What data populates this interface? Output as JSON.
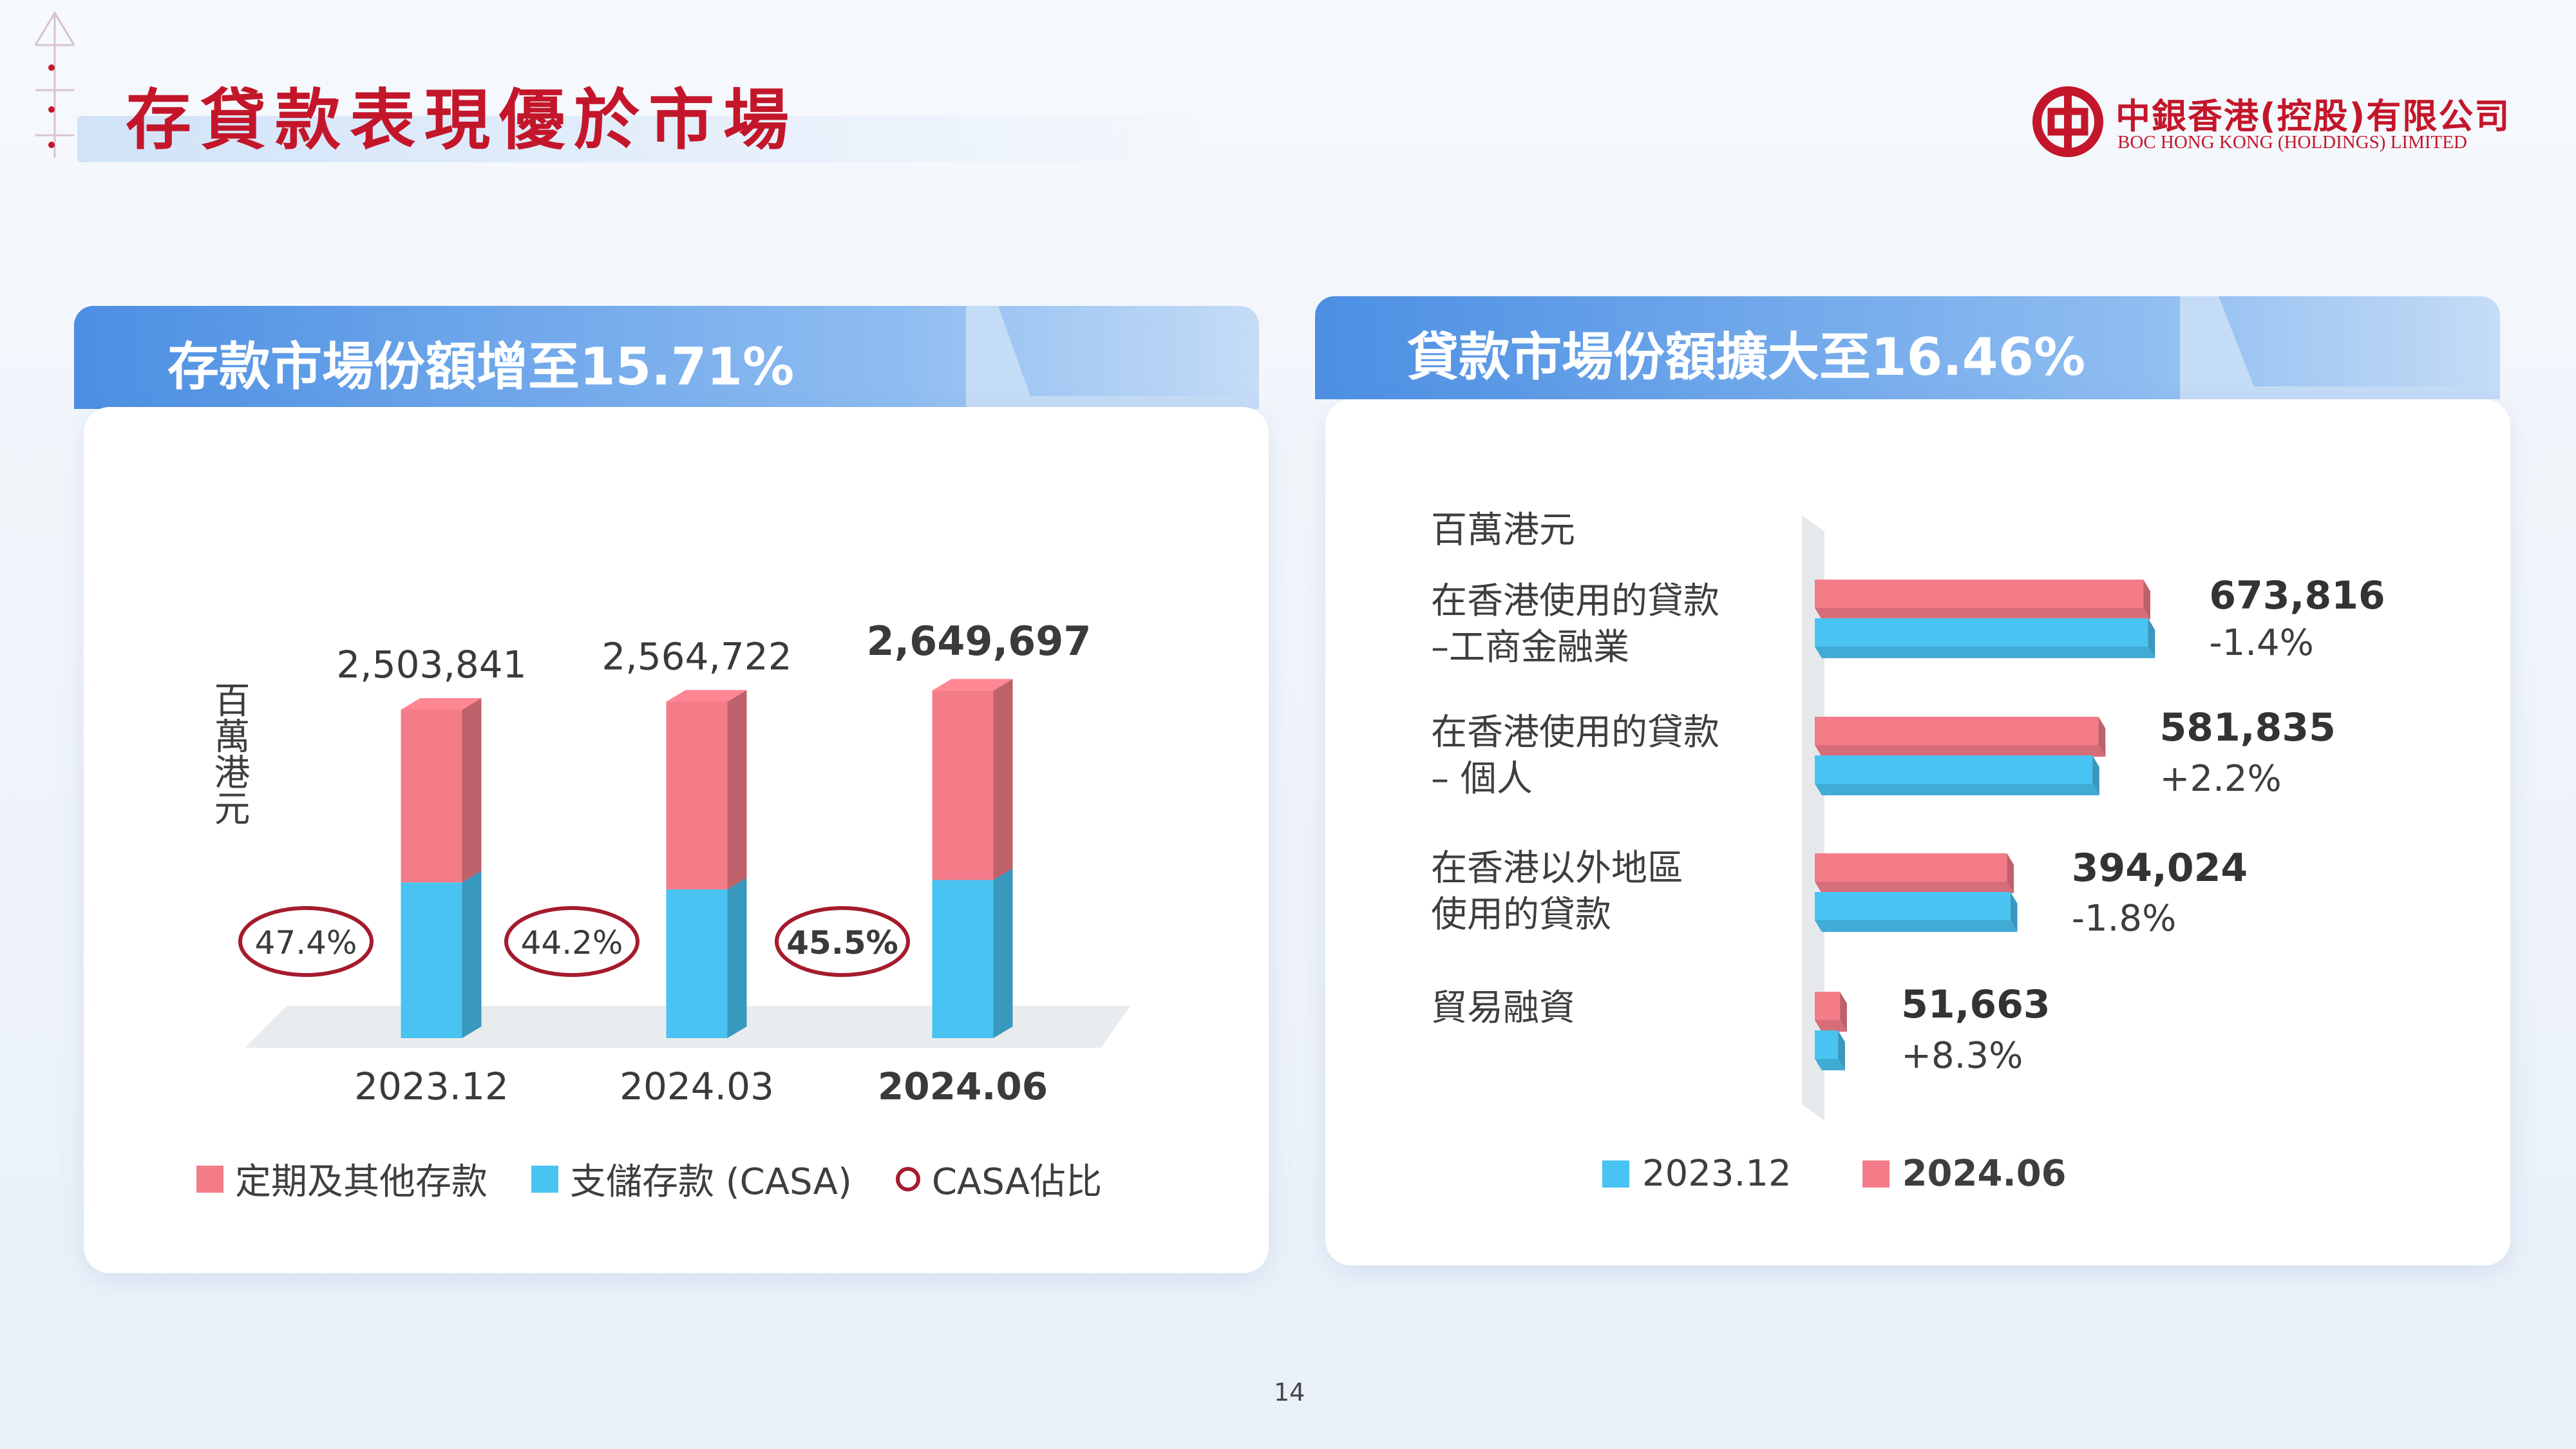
{
  "header": {
    "title": "存貸款表現優於市場",
    "logo_cn": "中銀香港(控股)有限公司",
    "logo_en": "BOC HONG KONG (HOLDINGS) LIMITED"
  },
  "page_number": "14",
  "colors": {
    "red": "#f47c88",
    "blue": "#49c3f2",
    "accent": "#c4162a",
    "circle": "#a51b2d"
  },
  "chart_data": [
    {
      "type": "bar",
      "title": "存款市場份額增至15.71%",
      "ylabel": "百萬港元",
      "categories": [
        "2023.12",
        "2024.03",
        "2024.06"
      ],
      "totals_labels": [
        "2,503,841",
        "2,564,722",
        "2,649,697"
      ],
      "totals": [
        2503841,
        2564722,
        2649697
      ],
      "series": [
        {
          "name": "支儲存款 (CASA)",
          "color": "#49c3f2",
          "values": [
            1186820,
            1133607,
            1205612
          ]
        },
        {
          "name": "定期及其他存款",
          "color": "#f47c88",
          "values": [
            1317021,
            1431115,
            1444085
          ]
        }
      ],
      "casa_ratio": [
        "47.4%",
        "44.2%",
        "45.5%"
      ],
      "ratio_legend": "CASA佔比",
      "legend": [
        "定期及其他存款",
        "支儲存款 (CASA)",
        "CASA佔比"
      ]
    },
    {
      "type": "bar",
      "orientation": "horizontal",
      "title": "貸款市場份額擴大至16.46%",
      "unit_label": "百萬港元",
      "categories": [
        [
          "在香港使用的貸款",
          "–工商金融業"
        ],
        [
          "在香港使用的貸款",
          "– 個人"
        ],
        [
          "在香港以外地區",
          "使用的貸款"
        ],
        [
          "貿易融資"
        ]
      ],
      "value_labels": [
        "673,816",
        "581,835",
        "394,024",
        "51,663"
      ],
      "change_labels": [
        "-1.4%",
        "+2.2%",
        "-1.8%",
        "+8.3%"
      ],
      "series": [
        {
          "name": "2024.06",
          "color": "#f47c88",
          "values": [
            673816,
            581835,
            394024,
            51663
          ]
        },
        {
          "name": "2023.12",
          "color": "#49c3f2",
          "values": [
            683386,
            569310,
            401246,
            47699
          ]
        }
      ],
      "legend": [
        "2023.12",
        "2024.06"
      ]
    }
  ]
}
